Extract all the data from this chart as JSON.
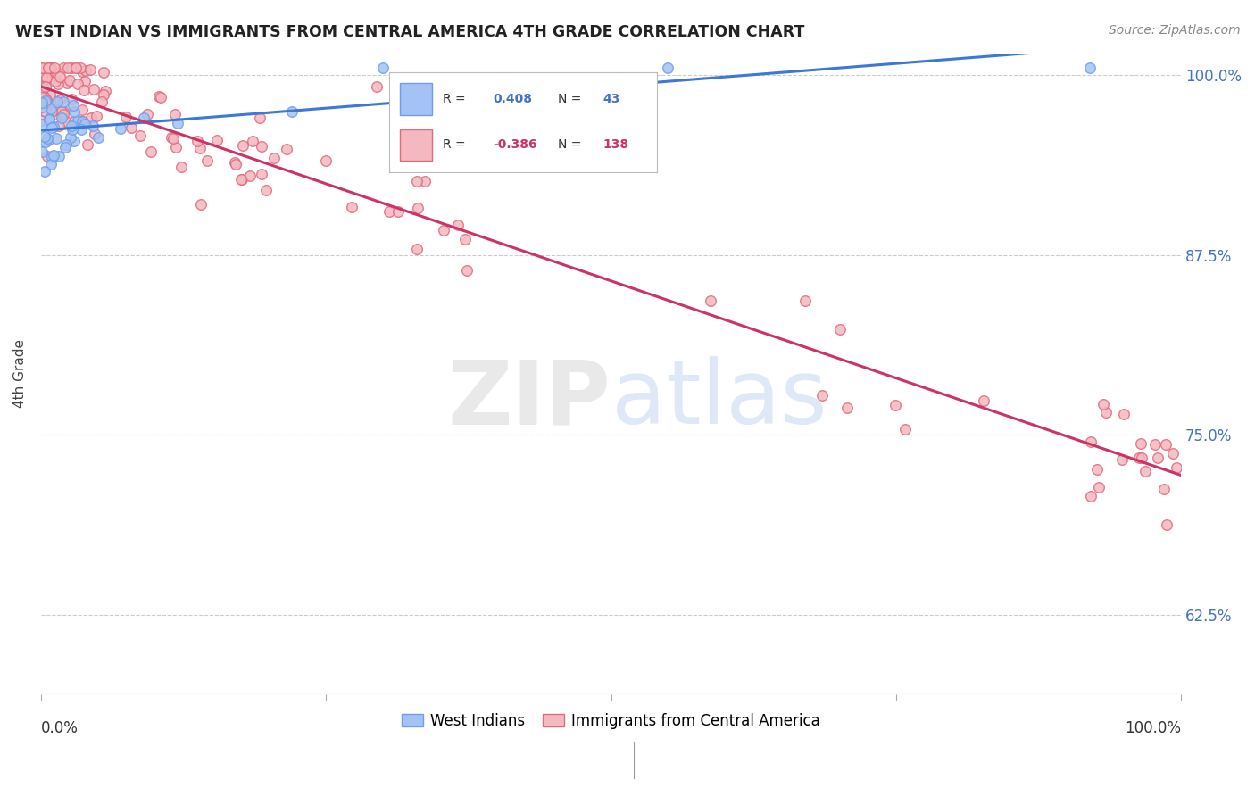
{
  "title": "WEST INDIAN VS IMMIGRANTS FROM CENTRAL AMERICA 4TH GRADE CORRELATION CHART",
  "source": "Source: ZipAtlas.com",
  "ylabel": "4th Grade",
  "legend_label_blue": "West Indians",
  "legend_label_pink": "Immigrants from Central America",
  "blue_r": 0.408,
  "blue_n": 43,
  "pink_r": -0.386,
  "pink_n": 138,
  "xlim": [
    0.0,
    1.0
  ],
  "ylim": [
    0.57,
    1.015
  ],
  "yticks": [
    0.625,
    0.75,
    0.875,
    1.0
  ],
  "ytick_labels": [
    "62.5%",
    "75.0%",
    "87.5%",
    "100.0%"
  ],
  "background_color": "#ffffff",
  "blue_scatter_face": "#a4c2f4",
  "blue_scatter_edge": "#6d9eeb",
  "pink_scatter_face": "#f4b8c1",
  "pink_scatter_edge": "#e06c7a",
  "blue_line_color": "#3c78d8",
  "pink_line_color": "#cc3366",
  "legend_blue_r_val": "0.408",
  "legend_blue_n_val": "43",
  "legend_pink_r_val": "-0.386",
  "legend_pink_n_val": "138"
}
